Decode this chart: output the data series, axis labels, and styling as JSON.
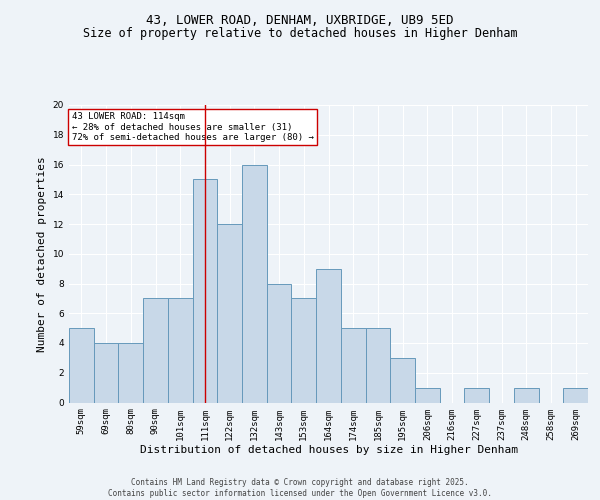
{
  "title1": "43, LOWER ROAD, DENHAM, UXBRIDGE, UB9 5ED",
  "title2": "Size of property relative to detached houses in Higher Denham",
  "xlabel": "Distribution of detached houses by size in Higher Denham",
  "ylabel": "Number of detached properties",
  "categories": [
    "59sqm",
    "69sqm",
    "80sqm",
    "90sqm",
    "101sqm",
    "111sqm",
    "122sqm",
    "132sqm",
    "143sqm",
    "153sqm",
    "164sqm",
    "174sqm",
    "185sqm",
    "195sqm",
    "206sqm",
    "216sqm",
    "227sqm",
    "237sqm",
    "248sqm",
    "258sqm",
    "269sqm"
  ],
  "values": [
    5,
    4,
    4,
    7,
    7,
    15,
    12,
    16,
    8,
    7,
    9,
    5,
    5,
    3,
    1,
    0,
    1,
    0,
    1,
    0,
    1
  ],
  "bar_color": "#c8d8e8",
  "bar_edge_color": "#6699bb",
  "vline_x_index": 5,
  "vline_color": "#cc0000",
  "annotation_text": "43 LOWER ROAD: 114sqm\n← 28% of detached houses are smaller (31)\n72% of semi-detached houses are larger (80) →",
  "annotation_box_color": "#ffffff",
  "annotation_box_edge": "#cc0000",
  "ylim": [
    0,
    20
  ],
  "yticks": [
    0,
    2,
    4,
    6,
    8,
    10,
    12,
    14,
    16,
    18,
    20
  ],
  "footer": "Contains HM Land Registry data © Crown copyright and database right 2025.\nContains public sector information licensed under the Open Government Licence v3.0.",
  "bg_color": "#eef3f8",
  "plot_bg_color": "#eef3f8",
  "title_fontsize": 9,
  "subtitle_fontsize": 8.5,
  "tick_fontsize": 6.5,
  "ylabel_fontsize": 8,
  "xlabel_fontsize": 8,
  "annotation_fontsize": 6.5,
  "footer_fontsize": 5.5
}
